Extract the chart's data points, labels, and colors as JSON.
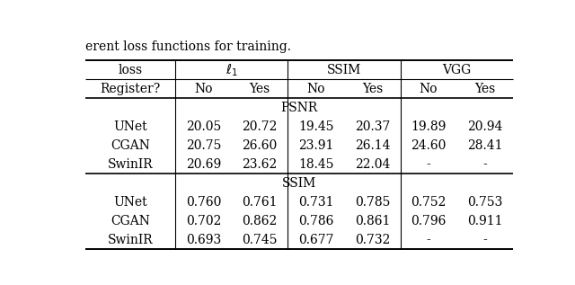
{
  "caption": "erent loss functions for training.",
  "psnr_rows": [
    [
      "UNet",
      "20.05",
      "20.72",
      "19.45",
      "20.37",
      "19.89",
      "20.94"
    ],
    [
      "CGAN",
      "20.75",
      "26.60",
      "23.91",
      "26.14",
      "24.60",
      "28.41"
    ],
    [
      "SwinIR",
      "20.69",
      "23.62",
      "18.45",
      "22.04",
      "-",
      "-"
    ]
  ],
  "ssim_rows": [
    [
      "UNet",
      "0.760",
      "0.761",
      "0.731",
      "0.785",
      "0.752",
      "0.753"
    ],
    [
      "CGAN",
      "0.702",
      "0.862",
      "0.786",
      "0.861",
      "0.796",
      "0.911"
    ],
    [
      "SwinIR",
      "0.693",
      "0.745",
      "0.677",
      "0.732",
      "-",
      "-"
    ]
  ],
  "bg_color": "#ffffff",
  "text_color": "#000000",
  "font_size": 10.0
}
